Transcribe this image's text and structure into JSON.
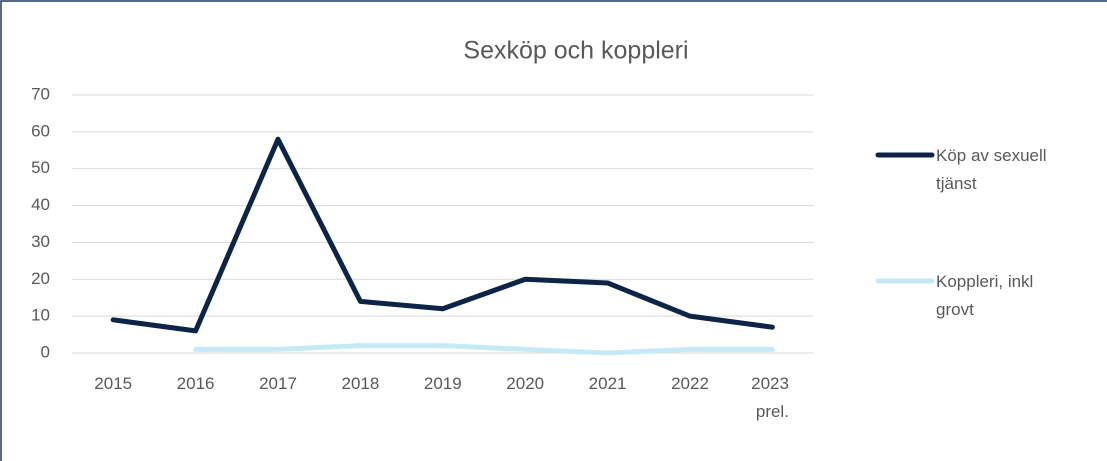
{
  "chart_data": {
    "type": "line",
    "title": "Sexköp och koppleri",
    "categories": [
      "2015",
      "2016",
      "2017",
      "2018",
      "2019",
      "2020",
      "2021",
      "2022",
      "2023 prel."
    ],
    "series": [
      {
        "name": "Köp av sexuell tjänst",
        "color": "#0b2447",
        "values": [
          9,
          6,
          58,
          14,
          12,
          20,
          19,
          10,
          7
        ]
      },
      {
        "name": "Koppleri, inkl grovt",
        "color": "#c6e9f8",
        "values": [
          null,
          1,
          1,
          2,
          2,
          1,
          0,
          1,
          1
        ]
      }
    ],
    "ylim": [
      0,
      70
    ],
    "yticks": [
      0,
      10,
      20,
      30,
      40,
      50,
      60,
      70
    ],
    "grid": true,
    "legend": "right"
  }
}
